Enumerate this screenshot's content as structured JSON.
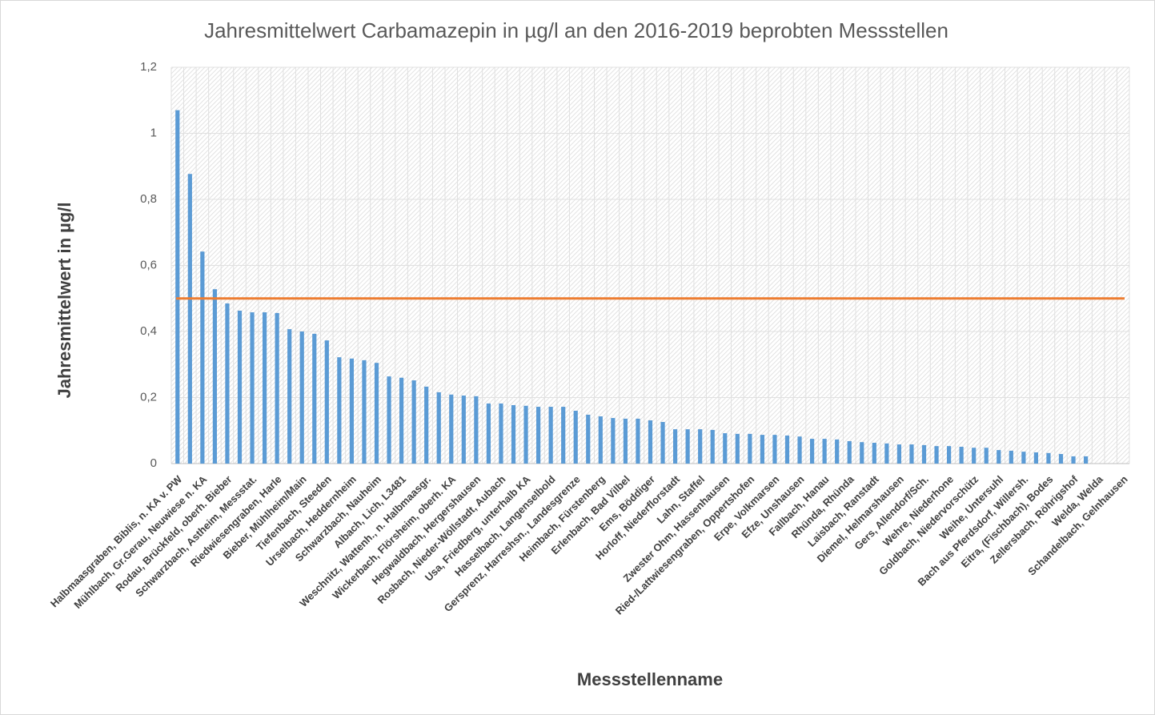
{
  "chart_data": {
    "type": "bar",
    "title": "Jahresmittelwert Carbamazepin in µg/l an den 2016-2019 beprobten Messstellen",
    "x_label": "Messstellenname",
    "y_label": "Jahresmittelwert in µg/l",
    "categories": [
      "Halbmaasgraben, Biblis, n. KA v. PW",
      null,
      "Mühlbach, Gr.Gerau, Neuwiese n. KA",
      null,
      "Rodau, Brückfeld, oberh. Bieber",
      null,
      "Schwarzbach, Astheim, Messstat.",
      null,
      "Riedwiesengraben, Harle",
      null,
      "Bieber, Mühlheim/Main",
      null,
      "Tiefenbach, Steeden",
      null,
      "Urselbach, Heddernheim",
      null,
      "Schwarzbach, Nauheim",
      null,
      "Albach, Lich, L3481",
      null,
      "Weschnitz, Wattenh., n. Halbmaasgr.",
      null,
      "Wickerbach, Flörsheim, oberh. KA",
      null,
      "Hegwaldbach, Hergershausen",
      null,
      "Rosbach, Nieder-Wöllstadt, Aubach",
      null,
      "Usa, Friedberg, unterhalb KA",
      null,
      "Hasselbach, Langenselbold",
      null,
      "Gersprenz, Harreshsn., Landesgrenze",
      null,
      "Heimbach, Fürstenberg",
      null,
      "Erlenbach, Bad Vilbel",
      null,
      "Ems, Böddiger",
      null,
      "Horloff, Niederflorstadt",
      null,
      "Lahn, Staffel",
      null,
      "Zwester Ohm, Hassenhausen",
      null,
      "Ried-/Lattwiesengraben, Oppertshofen",
      null,
      "Erpe, Volkmarsen",
      null,
      "Efze, Unshausen",
      null,
      "Fallbach, Hanau",
      null,
      "Rhünda, Rhünda",
      null,
      "Laisbach, Ranstadt",
      null,
      "Diemel, Helmarshausen",
      null,
      "Gers, Allendorf/Sch.",
      null,
      "Wehre, Niederhone",
      null,
      "Goldbach, Niedervorschütz",
      null,
      "Weihe, Untersuhl",
      null,
      "Bach aus Pferdsdorf, Willersh.",
      null,
      "Eitra, (Fischbach), Bodes",
      null,
      "Zellersbach, Röhrigshof",
      null,
      "Welda, Welda",
      null,
      "Schandelbach, Gelnhausen"
    ],
    "values": [
      1.07,
      0.877,
      0.642,
      0.528,
      0.485,
      0.463,
      0.458,
      0.458,
      0.456,
      0.407,
      0.4,
      0.393,
      0.373,
      0.322,
      0.318,
      0.313,
      0.305,
      0.264,
      0.26,
      0.252,
      0.233,
      0.216,
      0.209,
      0.206,
      0.204,
      0.182,
      0.182,
      0.177,
      0.175,
      0.172,
      0.172,
      0.172,
      0.16,
      0.148,
      0.143,
      0.138,
      0.136,
      0.136,
      0.131,
      0.126,
      0.104,
      0.104,
      0.104,
      0.102,
      0.092,
      0.09,
      0.09,
      0.087,
      0.087,
      0.085,
      0.082,
      0.075,
      0.075,
      0.073,
      0.068,
      0.065,
      0.063,
      0.061,
      0.058,
      0.058,
      0.056,
      0.053,
      0.053,
      0.051,
      0.048,
      0.048,
      0.041,
      0.039,
      0.036,
      0.034,
      0.032,
      0.029,
      0.022,
      0.022,
      0,
      0,
      0
    ],
    "color": "#5b9bd5",
    "reference_line": {
      "value": 0.5,
      "color": "#ed7d31"
    },
    "ylim": [
      0,
      1.2
    ],
    "yticks": [
      0,
      {
        "value": 0.2,
        "label": "0,2"
      },
      {
        "value": 0.4,
        "label": "0,4"
      },
      {
        "value": 0.6,
        "label": "0,6"
      },
      {
        "value": 0.8,
        "label": "0,8"
      },
      1,
      {
        "value": 1.2,
        "label": "1,2"
      }
    ],
    "grid": true
  }
}
